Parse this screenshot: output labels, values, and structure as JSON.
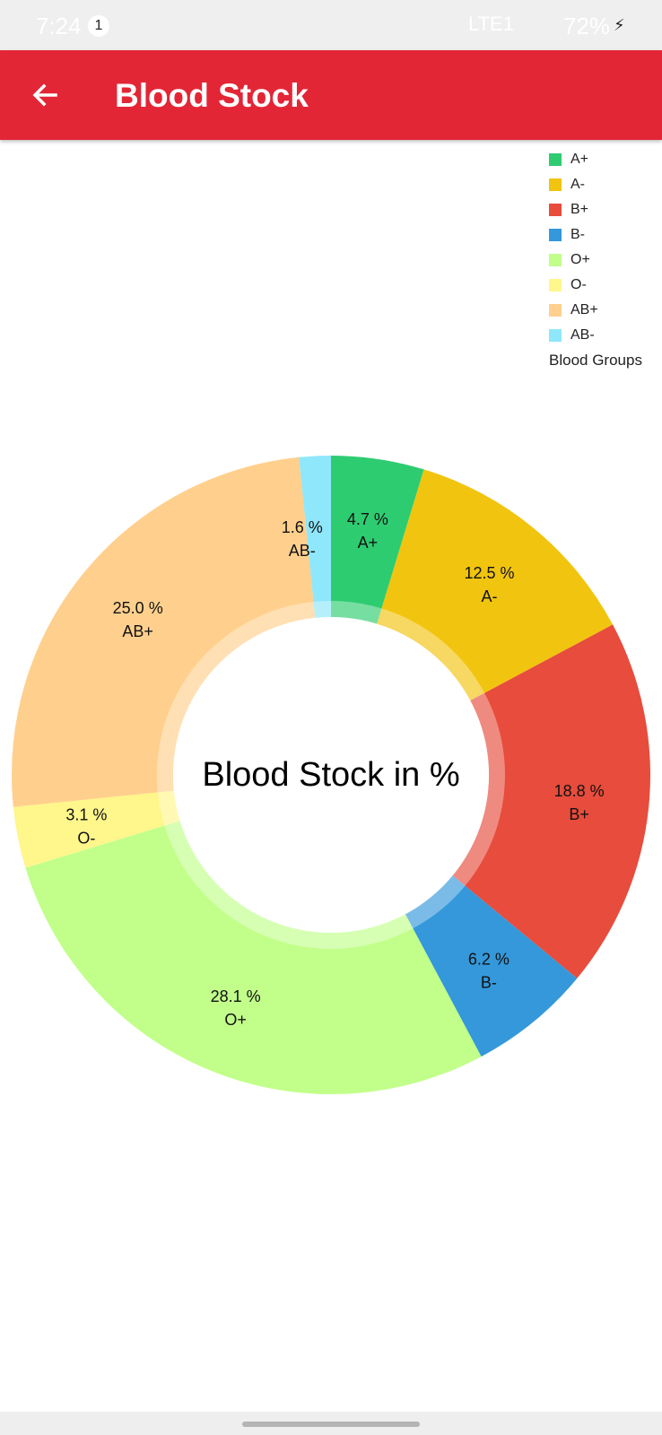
{
  "status_bar": {
    "time": "7:24",
    "notification_count": "1",
    "network": "LTE1",
    "battery": "72%"
  },
  "app_bar": {
    "title": "Blood Stock",
    "background": "#e32636",
    "back_icon": "arrow-left-icon"
  },
  "chart_data": {
    "type": "pie",
    "style": "donut",
    "center_text": "Blood Stock in %",
    "legend_title": "Blood Groups",
    "legend_position": "top-right",
    "unit": "%",
    "categories": [
      "A+",
      "A-",
      "B+",
      "B-",
      "O+",
      "O-",
      "AB+",
      "AB-"
    ],
    "values": [
      4.7,
      12.5,
      18.8,
      6.2,
      28.1,
      3.1,
      25.0,
      1.6
    ],
    "labels": [
      "4.7 %",
      "12.5 %",
      "18.8 %",
      "6.2 %",
      "28.1 %",
      "3.1 %",
      "25.0 %",
      "1.6 %"
    ],
    "colors": [
      "#2ecc71",
      "#f1c40f",
      "#e74c3c",
      "#3498db",
      "#c1ff8a",
      "#fff68c",
      "#ffd08d",
      "#8ee7fb"
    ]
  }
}
